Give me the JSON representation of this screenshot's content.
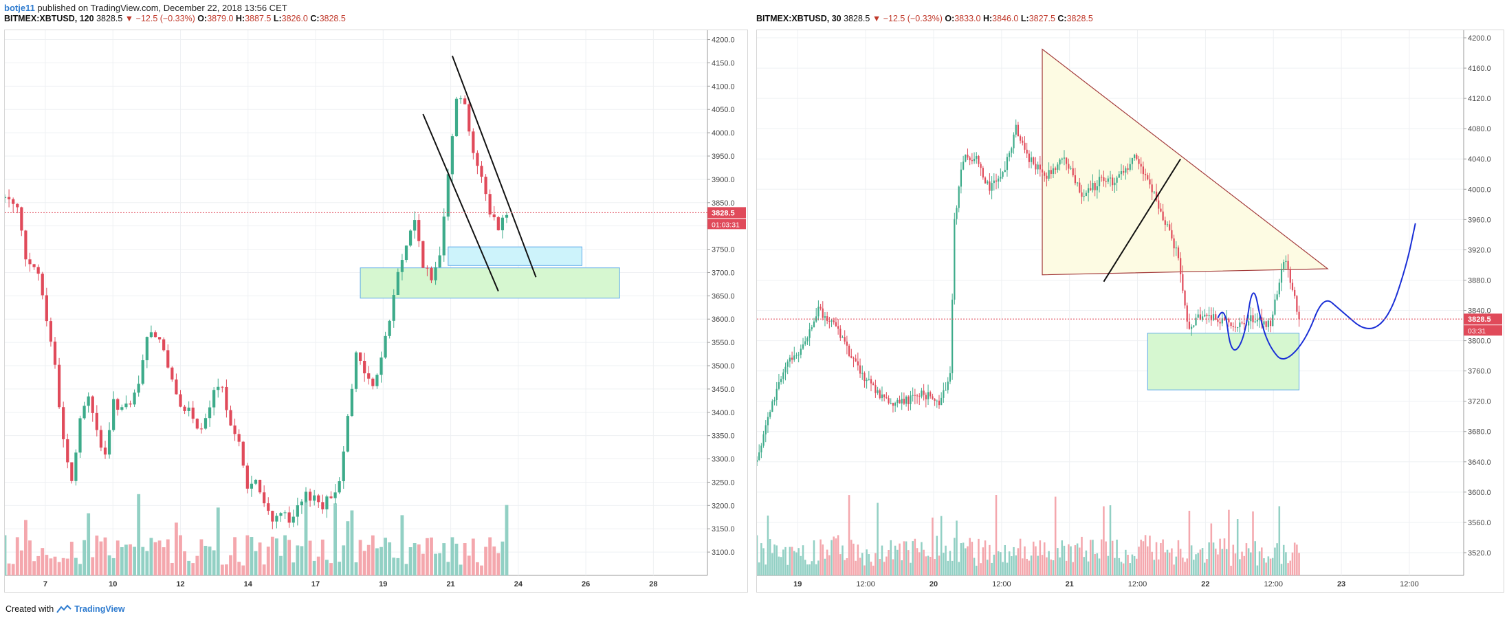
{
  "header": {
    "author": "botje11",
    "published": "published on TradingView.com, December 22, 2018 13:56 CET"
  },
  "left_ticker": {
    "symbol": "BITMEX:XBTUSD, 120",
    "last": "3828.5",
    "change": "▼ −12.5 (−0.33%)",
    "o_label": "O:",
    "o": "3879.0",
    "h_label": "H:",
    "h": "3887.5",
    "l_label": "L:",
    "l": "3826.0",
    "c_label": "C:",
    "c": "3828.5"
  },
  "right_ticker": {
    "symbol": "BITMEX:XBTUSD, 30",
    "last": "3828.5",
    "change": "▼ −12.5 (−0.33%)",
    "o_label": "O:",
    "o": "3833.0",
    "h_label": "H:",
    "h": "3846.0",
    "l_label": "L:",
    "l": "3827.5",
    "c_label": "C:",
    "c": "3828.5"
  },
  "footer": {
    "created": "Created with",
    "brand": "TradingView"
  },
  "colors": {
    "up": "#3dab8a",
    "down": "#e04a5a",
    "vol_up": "#92d0c4",
    "vol_down": "#f4a7ad",
    "grid": "#eef0f3",
    "price_line": "#e04a5a"
  },
  "chart_data": [
    {
      "type": "candlestick",
      "ylim": [
        3050,
        4220
      ],
      "y_ticks": [
        "4200.0",
        "4150.0",
        "4100.0",
        "4050.0",
        "4000.0",
        "3950.0",
        "3900.0",
        "3850.0",
        "3800.0",
        "3750.0",
        "3700.0",
        "3650.0",
        "3600.0",
        "3550.0",
        "3500.0",
        "3450.0",
        "3400.0",
        "3350.0",
        "3300.0",
        "3250.0",
        "3200.0",
        "3150.0",
        "3100.0"
      ],
      "x_ticks": [
        "7",
        "10",
        "12",
        "14",
        "17",
        "19",
        "21",
        "24",
        "26",
        "28"
      ],
      "last_price": "3828.5",
      "countdown": "01:03:31",
      "price_path": [
        [
          0,
          3860
        ],
        [
          3,
          3850
        ],
        [
          5,
          3720
        ],
        [
          8,
          3700
        ],
        [
          10,
          3600
        ],
        [
          12,
          3500
        ],
        [
          14,
          3340
        ],
        [
          16,
          3250
        ],
        [
          18,
          3380
        ],
        [
          20,
          3440
        ],
        [
          22,
          3360
        ],
        [
          24,
          3300
        ],
        [
          26,
          3420
        ],
        [
          28,
          3410
        ],
        [
          30,
          3410
        ],
        [
          32,
          3460
        ],
        [
          34,
          3560
        ],
        [
          36,
          3570
        ],
        [
          38,
          3540
        ],
        [
          40,
          3460
        ],
        [
          42,
          3420
        ],
        [
          44,
          3400
        ],
        [
          46,
          3360
        ],
        [
          48,
          3380
        ],
        [
          50,
          3440
        ],
        [
          52,
          3450
        ],
        [
          54,
          3380
        ],
        [
          56,
          3330
        ],
        [
          58,
          3240
        ],
        [
          60,
          3250
        ],
        [
          62,
          3200
        ],
        [
          64,
          3170
        ],
        [
          66,
          3190
        ],
        [
          68,
          3160
        ],
        [
          70,
          3190
        ],
        [
          72,
          3220
        ],
        [
          74,
          3220
        ],
        [
          76,
          3200
        ],
        [
          78,
          3220
        ],
        [
          80,
          3250
        ],
        [
          82,
          3400
        ],
        [
          84,
          3520
        ],
        [
          86,
          3490
        ],
        [
          88,
          3450
        ],
        [
          90,
          3520
        ],
        [
          92,
          3600
        ],
        [
          94,
          3700
        ],
        [
          96,
          3760
        ],
        [
          98,
          3810
        ],
        [
          100,
          3720
        ],
        [
          102,
          3680
        ],
        [
          104,
          3740
        ],
        [
          106,
          3920
        ],
        [
          108,
          4080
        ],
        [
          110,
          4060
        ],
        [
          112,
          3960
        ],
        [
          114,
          3900
        ],
        [
          116,
          3830
        ],
        [
          118,
          3800
        ],
        [
          120,
          3828.5
        ]
      ],
      "candles_count": 121,
      "x_span": 168,
      "zones": [
        {
          "name": "cyan-zone",
          "x0": 106,
          "x1": 138,
          "y0": 3715,
          "y1": 3755,
          "fill": "#cdf3fb",
          "stroke": "#5da9e9"
        },
        {
          "name": "green-zone",
          "x0": 85,
          "x1": 147,
          "y0": 3645,
          "y1": 3710,
          "fill": "#d6f7d0",
          "stroke": "#5da9e9"
        }
      ],
      "lines": [
        {
          "name": "channel-line-lower",
          "x0": 100,
          "y0": 4040,
          "x1": 118,
          "y1": 3660
        },
        {
          "name": "channel-line-upper",
          "x0": 107,
          "y0": 4165,
          "x1": 127,
          "y1": 3690
        }
      ]
    },
    {
      "type": "candlestick",
      "ylim": [
        3490,
        4210
      ],
      "y_ticks": [
        "4200.0",
        "4160.0",
        "4120.0",
        "4080.0",
        "4040.0",
        "4000.0",
        "3960.0",
        "3920.0",
        "3880.0",
        "3840.0",
        "3800.0",
        "3760.0",
        "3720.0",
        "3680.0",
        "3640.0",
        "3600.0",
        "3560.0",
        "3520.0"
      ],
      "x_ticks": [
        "19",
        "12:00",
        "20",
        "12:00",
        "21",
        "12:00",
        "22",
        "12:00",
        "23",
        "12:00"
      ],
      "last_price": "3828.5",
      "countdown": "03:31",
      "price_path": [
        [
          0,
          3640
        ],
        [
          5,
          3700
        ],
        [
          12,
          3760
        ],
        [
          20,
          3790
        ],
        [
          28,
          3840
        ],
        [
          36,
          3820
        ],
        [
          44,
          3770
        ],
        [
          52,
          3740
        ],
        [
          60,
          3720
        ],
        [
          68,
          3720
        ],
        [
          76,
          3730
        ],
        [
          84,
          3720
        ],
        [
          88,
          3760
        ],
        [
          90,
          3960
        ],
        [
          94,
          4040
        ],
        [
          100,
          4040
        ],
        [
          106,
          4000
        ],
        [
          112,
          4020
        ],
        [
          118,
          4080
        ],
        [
          124,
          4040
        ],
        [
          132,
          4020
        ],
        [
          140,
          4040
        ],
        [
          148,
          3990
        ],
        [
          156,
          4010
        ],
        [
          164,
          4010
        ],
        [
          172,
          4040
        ],
        [
          180,
          4000
        ],
        [
          188,
          3940
        ],
        [
          192,
          3910
        ],
        [
          196,
          3820
        ],
        [
          202,
          3830
        ],
        [
          210,
          3830
        ],
        [
          218,
          3820
        ],
        [
          226,
          3830
        ],
        [
          234,
          3820
        ],
        [
          240,
          3910
        ],
        [
          244,
          3870
        ],
        [
          247,
          3828.5
        ]
      ],
      "candles_count": 248,
      "x_span": 322,
      "zones": [
        {
          "name": "green-zone",
          "x0": 178,
          "x1": 247,
          "y0": 3735,
          "y1": 3810,
          "fill": "#d6f7d0",
          "stroke": "#5da9e9"
        }
      ],
      "triangle": {
        "points": [
          [
            130,
            4185
          ],
          [
            130,
            3887
          ],
          [
            247,
            3887
          ]
        ],
        "apex": [
          260,
          3895
        ],
        "fill": "#fdfbe3",
        "stroke": "#a33a3a"
      },
      "lines": [
        {
          "name": "trend-line-black",
          "x0": 158,
          "y0": 3878,
          "x1": 193,
          "y1": 4040
        }
      ],
      "projection": {
        "name": "blue-projection-curve",
        "points": [
          [
            210,
            3830
          ],
          [
            213,
            3850
          ],
          [
            216,
            3780
          ],
          [
            222,
            3800
          ],
          [
            226,
            3880
          ],
          [
            230,
            3820
          ],
          [
            234,
            3790
          ],
          [
            240,
            3770
          ],
          [
            250,
            3800
          ],
          [
            258,
            3860
          ],
          [
            266,
            3840
          ],
          [
            278,
            3810
          ],
          [
            288,
            3830
          ],
          [
            296,
            3900
          ],
          [
            300,
            3955
          ]
        ]
      }
    }
  ]
}
